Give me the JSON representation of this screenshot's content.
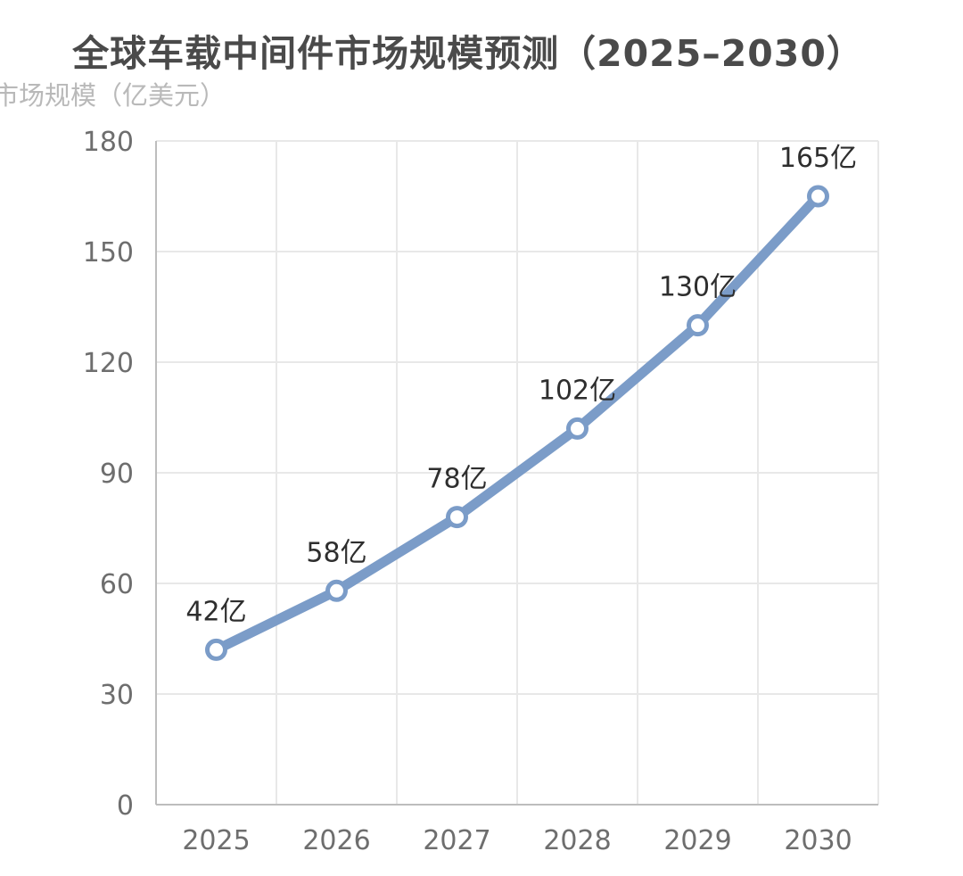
{
  "chart_data": {
    "type": "line",
    "title": "全球车载中间件市场规模预测（2025–2030）",
    "ylabel": "市场规模（亿美元）",
    "xlabel": "",
    "categories": [
      "2025",
      "2026",
      "2027",
      "2028",
      "2029",
      "2030"
    ],
    "series": [
      {
        "values": [
          42,
          58,
          78,
          102,
          130,
          165
        ],
        "data_labels": [
          "42亿",
          "58亿",
          "78亿",
          "102亿",
          "130亿",
          "165亿"
        ]
      }
    ],
    "ylim": [
      0,
      180
    ],
    "yticks": [
      "0",
      "30",
      "60",
      "90",
      "120",
      "150",
      "180"
    ],
    "grid": true,
    "legend": "none",
    "colors": {
      "line": "#7b9cc8",
      "marker_fill": "#ffffff",
      "grid": "#e8e8e8",
      "axis": "#bdbdbd"
    }
  }
}
